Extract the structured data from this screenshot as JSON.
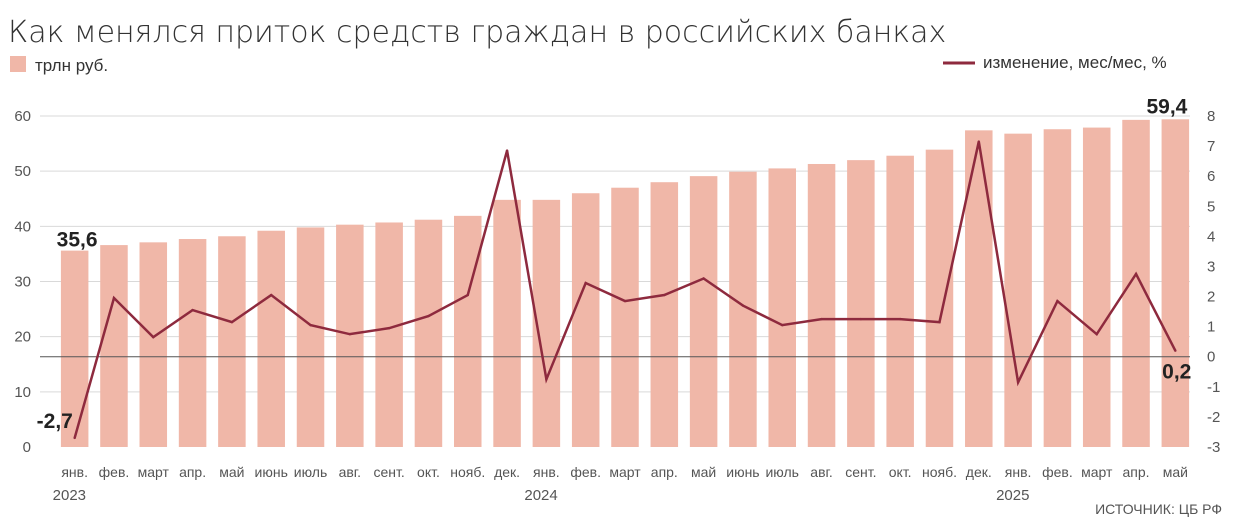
{
  "title": "Как менялся приток средств граждан в российских банках",
  "legend": {
    "bars_label": "трлн руб.",
    "line_label": "изменение, мес/мес, %"
  },
  "colors": {
    "bars": "#f0b7a8",
    "line": "#8e2a3e",
    "grid": "#d9d9d9",
    "zero_line": "#555555"
  },
  "source": "ИСТОЧНИК: ЦБ РФ",
  "callouts": {
    "first_bar": "35,6",
    "last_bar": "59,4",
    "first_line": "-2,7",
    "last_line": "0,2"
  },
  "chart_data": {
    "type": "bar",
    "categories": [
      "янв.",
      "фев.",
      "март",
      "апр.",
      "май",
      "июнь",
      "июль",
      "авг.",
      "сент.",
      "окт.",
      "нояб.",
      "дек.",
      "янв.",
      "фев.",
      "март",
      "апр.",
      "май",
      "июнь",
      "июль",
      "авг.",
      "сент.",
      "окт.",
      "нояб.",
      "дек.",
      "янв.",
      "фев.",
      "март",
      "апр.",
      "май"
    ],
    "year_labels": [
      {
        "label": "2023",
        "index": 0
      },
      {
        "label": "2024",
        "index": 12
      },
      {
        "label": "2025",
        "index": 24
      }
    ],
    "series": [
      {
        "name": "трлн руб.",
        "type": "bar",
        "axis": "left",
        "values": [
          35.6,
          36.6,
          37.1,
          37.7,
          38.2,
          39.2,
          39.8,
          40.3,
          40.7,
          41.2,
          41.9,
          44.8,
          44.8,
          46.0,
          47.0,
          48.0,
          49.1,
          49.9,
          50.5,
          51.3,
          52.0,
          52.8,
          53.9,
          57.4,
          56.8,
          57.6,
          57.9,
          59.3,
          59.4
        ]
      },
      {
        "name": "изменение, мес/мес, %",
        "type": "line",
        "axis": "right",
        "values": [
          -2.7,
          1.95,
          0.65,
          1.55,
          1.15,
          2.05,
          1.05,
          0.75,
          0.95,
          1.35,
          2.05,
          6.85,
          -0.75,
          2.45,
          1.85,
          2.05,
          2.6,
          1.7,
          1.05,
          1.25,
          1.25,
          1.25,
          1.15,
          7.15,
          -0.85,
          1.85,
          0.75,
          2.75,
          0.2
        ]
      }
    ],
    "ylim_left": [
      0,
      60
    ],
    "yticks_left": [
      0,
      10,
      20,
      30,
      40,
      50,
      60
    ],
    "ylim_right": [
      -3,
      8
    ],
    "yticks_right": [
      -3,
      -2,
      -1,
      0,
      1,
      2,
      3,
      4,
      5,
      6,
      7,
      8
    ],
    "grid": true,
    "legend_position": "top"
  }
}
